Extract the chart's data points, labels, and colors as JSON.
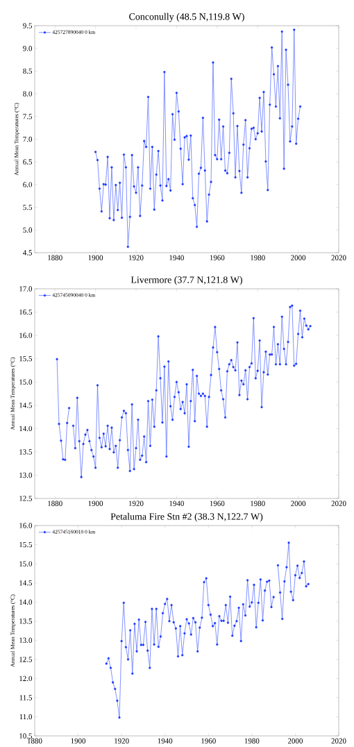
{
  "chart_data": [
    {
      "type": "line",
      "title": "Conconully (48.5 N,119.8 W)",
      "ylabel": "Annual Mean Temperatures (°C)",
      "legend": "top left",
      "marker": "circle",
      "line_style": "solid",
      "xlim": [
        1870,
        2020
      ],
      "xticks": [
        1880,
        1900,
        1920,
        1940,
        1960,
        1980,
        2000,
        2020
      ],
      "ylim": [
        4.5,
        9.5
      ],
      "yticks": [
        4.5,
        {
          "value": 5,
          "label": "5.0"
        },
        5.5,
        {
          "value": 6,
          "label": "6.0"
        },
        6.5,
        {
          "value": 7,
          "label": "7.0"
        },
        7.5,
        {
          "value": 8,
          "label": "8.0"
        },
        8.5,
        {
          "value": 9,
          "label": "9.0"
        },
        9.5
      ],
      "x": [
        1900,
        1901,
        1902,
        1903,
        1904,
        1905,
        1906,
        1907,
        1908,
        1909,
        1910,
        1911,
        1912,
        1913,
        1914,
        1915,
        1916,
        1917,
        1918,
        1919,
        1920,
        1921,
        1922,
        1923,
        1924,
        1925,
        1926,
        1927,
        1928,
        1929,
        1930,
        1931,
        1932,
        1933,
        1934,
        1935,
        1936,
        1937,
        1938,
        1939,
        1940,
        1941,
        1942,
        1943,
        1944,
        1945,
        1946,
        1947,
        1948,
        1949,
        1950,
        1951,
        1952,
        1953,
        1954,
        1955,
        1956,
        1957,
        1958,
        1959,
        1960,
        1961,
        1962,
        1963,
        1964,
        1965,
        1966,
        1967,
        1968,
        1969,
        1970,
        1971,
        1972,
        1973,
        1974,
        1975,
        1976,
        1977,
        1978,
        1979,
        1980,
        1981,
        1982,
        1983,
        1984,
        1985,
        1986,
        1987,
        1988,
        1989,
        1990,
        1991,
        1992,
        1993,
        1994,
        1995,
        1996,
        1997,
        1998,
        1999,
        2000,
        2001
      ],
      "series": [
        {
          "name": "425727890040 0 km",
          "color": "#1f3cff",
          "values": [
            6.72,
            6.54,
            5.91,
            5.41,
            6.01,
            6.0,
            6.61,
            5.26,
            6.38,
            5.22,
            5.99,
            5.44,
            6.04,
            5.27,
            6.66,
            6.38,
            4.63,
            5.29,
            6.65,
            5.96,
            5.82,
            6.38,
            5.31,
            5.98,
            6.96,
            6.83,
            7.93,
            5.91,
            6.83,
            5.45,
            6.22,
            6.74,
            5.98,
            5.65,
            8.48,
            5.97,
            6.12,
            5.87,
            7.55,
            6.99,
            8.02,
            7.61,
            6.79,
            6.01,
            7.04,
            7.07,
            6.55,
            7.08,
            5.7,
            5.55,
            5.07,
            6.24,
            6.37,
            7.47,
            6.31,
            5.19,
            5.78,
            6.06,
            8.69,
            6.65,
            6.56,
            7.43,
            6.56,
            7.28,
            6.31,
            6.25,
            6.7,
            8.33,
            7.57,
            6.16,
            7.29,
            6.3,
            5.82,
            6.88,
            7.42,
            6.16,
            6.8,
            7.23,
            7.25,
            7.0,
            7.13,
            7.91,
            7.17,
            8.04,
            6.51,
            5.88,
            7.76,
            9.02,
            8.43,
            7.72,
            8.61,
            7.46,
            9.37,
            6.35,
            8.97,
            8.2,
            6.95,
            7.28,
            9.41,
            6.9,
            7.45,
            7.72
          ]
        }
      ]
    },
    {
      "type": "line",
      "title": "Livermore (37.7 N,121.8 W)",
      "ylabel": "Annual Mean Temperatures (°C)",
      "legend": "top left",
      "marker": "circle",
      "line_style": "solid",
      "xlim": [
        1870,
        2020
      ],
      "xticks": [
        1880,
        1900,
        1920,
        1940,
        1960,
        1980,
        2000,
        2020
      ],
      "ylim": [
        12.5,
        17
      ],
      "yticks": [
        12.5,
        {
          "value": 13,
          "label": "13.0"
        },
        13.5,
        {
          "value": 14,
          "label": "14.0"
        },
        14.5,
        {
          "value": 15,
          "label": "15.0"
        },
        15.5,
        {
          "value": 16,
          "label": "16.0"
        },
        16.5,
        {
          "value": 17,
          "label": "17.0"
        }
      ],
      "x": [
        1881,
        1882,
        1883,
        1884,
        1885,
        1886,
        1887,
        1888,
        1889,
        1890,
        1891,
        1892,
        1893,
        1894,
        1895,
        1896,
        1897,
        1898,
        1899,
        1900,
        1901,
        1902,
        1903,
        1904,
        1905,
        1906,
        1907,
        1908,
        1909,
        1910,
        1911,
        1912,
        1913,
        1914,
        1915,
        1916,
        1917,
        1918,
        1919,
        1920,
        1921,
        1922,
        1923,
        1924,
        1925,
        1926,
        1927,
        1928,
        1929,
        1930,
        1931,
        1932,
        1933,
        1934,
        1935,
        1936,
        1937,
        1938,
        1939,
        1940,
        1941,
        1942,
        1943,
        1944,
        1945,
        1946,
        1947,
        1948,
        1949,
        1950,
        1951,
        1952,
        1953,
        1954,
        1955,
        1956,
        1957,
        1958,
        1959,
        1960,
        1961,
        1962,
        1963,
        1964,
        1965,
        1966,
        1967,
        1968,
        1969,
        1970,
        1971,
        1972,
        1973,
        1974,
        1975,
        1976,
        1977,
        1978,
        1979,
        1980,
        1981,
        1982,
        1983,
        1984,
        1985,
        1986,
        1987,
        1988,
        1989,
        1990,
        1991,
        1992,
        1993,
        1994,
        1995,
        1996,
        1997,
        1998,
        1999,
        2000,
        2001,
        2002,
        2003,
        2004,
        2005,
        2006
      ],
      "series": [
        {
          "name": "425745090040 0 km",
          "color": "#1f3cff",
          "values": [
            15.49,
            14.1,
            13.74,
            13.34,
            13.33,
            14.12,
            14.44,
            null,
            14.06,
            13.58,
            14.66,
            13.73,
            12.96,
            13.67,
            13.87,
            13.97,
            13.73,
            13.54,
            13.4,
            13.16,
            14.93,
            13.8,
            13.6,
            13.89,
            13.62,
            14.06,
            13.56,
            14.02,
            13.49,
            13.63,
            13.16,
            13.75,
            14.24,
            14.38,
            14.33,
            13.54,
            13.09,
            14.52,
            13.13,
            13.58,
            14.19,
            13.33,
            13.42,
            13.83,
            13.28,
            14.59,
            13.63,
            14.62,
            14.04,
            14.82,
            15.98,
            15.08,
            14.13,
            15.33,
            13.4,
            15.44,
            14.48,
            14.19,
            14.68,
            15.0,
            14.78,
            14.42,
            14.57,
            14.33,
            14.95,
            13.61,
            14.59,
            15.26,
            14.16,
            15.13,
            14.75,
            14.7,
            14.75,
            14.7,
            14.04,
            14.68,
            15.15,
            15.74,
            16.18,
            15.64,
            15.28,
            14.82,
            14.63,
            14.24,
            15.23,
            15.38,
            15.47,
            15.32,
            15.25,
            15.85,
            14.72,
            15.03,
            14.95,
            15.25,
            14.63,
            15.32,
            15.4,
            16.37,
            15.08,
            15.24,
            15.89,
            14.46,
            15.21,
            15.65,
            15.16,
            15.59,
            15.59,
            16.18,
            15.38,
            15.81,
            15.38,
            16.4,
            15.71,
            15.38,
            15.86,
            16.61,
            16.64,
            15.35,
            15.39,
            16.03,
            16.53,
            15.96,
            16.36,
            16.21,
            16.13,
            16.2
          ]
        }
      ]
    },
    {
      "type": "line",
      "title": "Petaluma Fire Stn #2 (38.3 N,122.7 W)",
      "ylabel": "Annual Mean Temperatures (°C)",
      "legend": "top left",
      "marker": "circle",
      "line_style": "solid",
      "xlim": [
        1880,
        2020
      ],
      "xticks": [
        1880,
        1900,
        1920,
        1940,
        1960,
        1980,
        2000,
        2020
      ],
      "ylim": [
        10.5,
        16
      ],
      "yticks": [
        10.5,
        {
          "value": 11,
          "label": "11.0"
        },
        11.5,
        {
          "value": 12,
          "label": "12.0"
        },
        12.5,
        {
          "value": 13,
          "label": "13.0"
        },
        13.5,
        {
          "value": 14,
          "label": "14.0"
        },
        14.5,
        {
          "value": 15,
          "label": "15.0"
        },
        15.5,
        {
          "value": 16,
          "label": "16.0"
        }
      ],
      "x": [
        1913,
        1914,
        1915,
        1916,
        1917,
        1918,
        1919,
        1920,
        1921,
        1922,
        1923,
        1924,
        1925,
        1926,
        1927,
        1928,
        1929,
        1930,
        1931,
        1932,
        1933,
        1934,
        1935,
        1936,
        1937,
        1938,
        1939,
        1940,
        1941,
        1942,
        1943,
        1944,
        1945,
        1946,
        1947,
        1948,
        1949,
        1950,
        1951,
        1952,
        1953,
        1954,
        1955,
        1956,
        1957,
        1958,
        1959,
        1960,
        1961,
        1962,
        1963,
        1964,
        1965,
        1966,
        1967,
        1968,
        1969,
        1970,
        1971,
        1972,
        1973,
        1974,
        1975,
        1976,
        1977,
        1978,
        1979,
        1980,
        1981,
        1982,
        1983,
        1984,
        1985,
        1986,
        1987,
        1988,
        1989,
        1990,
        1991,
        1992,
        1993,
        1994,
        1995,
        1996,
        1997,
        1998,
        1999,
        2000,
        2001,
        2002,
        2003,
        2004,
        2005,
        2006
      ],
      "series": [
        {
          "name": "425745160010 0 km",
          "color": "#1f3cff",
          "values": [
            12.39,
            12.53,
            12.28,
            11.9,
            11.73,
            11.42,
            10.98,
            12.98,
            13.98,
            12.82,
            12.5,
            13.26,
            12.13,
            13.43,
            12.71,
            13.54,
            12.88,
            12.88,
            13.48,
            12.73,
            12.28,
            13.82,
            12.89,
            13.82,
            12.83,
            13.1,
            13.71,
            13.95,
            14.08,
            13.5,
            13.92,
            13.47,
            13.31,
            12.58,
            13.37,
            12.61,
            13.18,
            13.55,
            13.44,
            13.15,
            13.58,
            13.47,
            12.71,
            13.33,
            13.59,
            14.52,
            14.62,
            13.92,
            13.67,
            13.37,
            13.45,
            12.89,
            13.63,
            13.51,
            13.51,
            13.92,
            13.46,
            14.14,
            13.12,
            13.38,
            13.5,
            13.85,
            12.98,
            13.94,
            13.65,
            14.57,
            13.88,
            13.99,
            14.45,
            13.34,
            13.98,
            14.59,
            13.52,
            14.3,
            14.53,
            14.56,
            13.87,
            14.13,
            null,
            14.96,
            14.25,
            13.56,
            14.54,
            14.91,
            15.55,
            14.27,
            14.05,
            14.7,
            14.95,
            14.63,
            14.76,
            15.06,
            14.41,
            14.47
          ]
        }
      ]
    }
  ]
}
